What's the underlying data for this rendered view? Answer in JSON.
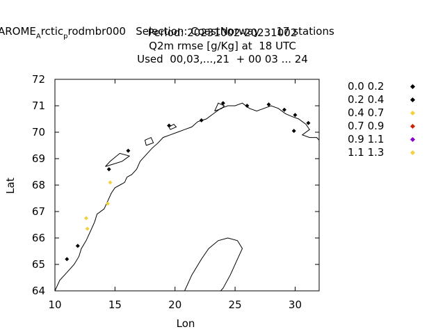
{
  "title": {
    "line1_a": "xp: AROME",
    "line1_sub1": "A",
    "line1_b": "rctic",
    "line1_sub2": "p",
    "line1_c": "rodmbr000   Selection: CoastNorway     17 stations",
    "line2": "Period: 20231002-20231002",
    "line3": "Q2m rmse [g/Kg] at  18 UTC",
    "line4": "Used  00,03,...,21  + 00 03 ... 24"
  },
  "chart_data": {
    "type": "scatter",
    "xlabel": "Lon",
    "ylabel": "Lat",
    "xlim": [
      10,
      32
    ],
    "ylim": [
      64,
      72
    ],
    "xticks": [
      "10",
      "15",
      "20",
      "25",
      "30"
    ],
    "yticks": [
      "64",
      "65",
      "66",
      "67",
      "68",
      "69",
      "70",
      "71",
      "72"
    ],
    "legend_placement": "right",
    "legend": [
      {
        "label": "0.0 0.2",
        "color": "#000000"
      },
      {
        "label": "0.2 0.4",
        "color": "#000000"
      },
      {
        "label": "0.4 0.7",
        "color": "#f4d03f"
      },
      {
        "label": "0.7 0.9",
        "color": "#cc2200"
      },
      {
        "label": "0.9 1.1",
        "color": "#8800cc"
      },
      {
        "label": "1.1 1.3",
        "color": "#f4d03f"
      }
    ],
    "points": [
      {
        "lon": 11.0,
        "lat": 65.2,
        "class": "0.2 0.4"
      },
      {
        "lon": 11.9,
        "lat": 65.7,
        "class": "0.2 0.4"
      },
      {
        "lon": 12.6,
        "lat": 66.75,
        "class": "0.4 0.7"
      },
      {
        "lon": 12.7,
        "lat": 66.35,
        "class": "0.4 0.7"
      },
      {
        "lon": 14.4,
        "lat": 67.3,
        "class": "0.4 0.7"
      },
      {
        "lon": 14.6,
        "lat": 68.1,
        "class": "0.4 0.7"
      },
      {
        "lon": 14.5,
        "lat": 68.6,
        "class": "0.2 0.4"
      },
      {
        "lon": 16.1,
        "lat": 69.3,
        "class": "0.2 0.4"
      },
      {
        "lon": 19.5,
        "lat": 70.25,
        "class": "0.2 0.4"
      },
      {
        "lon": 22.2,
        "lat": 70.45,
        "class": "0.2 0.4"
      },
      {
        "lon": 24.0,
        "lat": 71.1,
        "class": "0.2 0.4"
      },
      {
        "lon": 26.0,
        "lat": 71.0,
        "class": "0.2 0.4"
      },
      {
        "lon": 27.8,
        "lat": 71.05,
        "class": "0.2 0.4"
      },
      {
        "lon": 29.1,
        "lat": 70.85,
        "class": "0.2 0.4"
      },
      {
        "lon": 30.0,
        "lat": 70.65,
        "class": "0.2 0.4"
      },
      {
        "lon": 29.9,
        "lat": 70.05,
        "class": "0.2 0.4"
      },
      {
        "lon": 31.1,
        "lat": 70.35,
        "class": "0.2 0.4"
      }
    ]
  }
}
